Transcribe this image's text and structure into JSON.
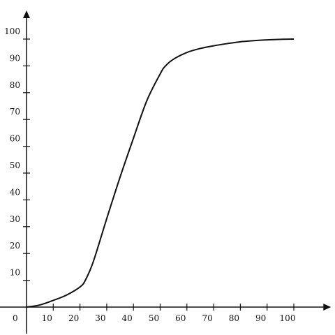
{
  "chart_data": {
    "type": "line",
    "title": "",
    "xlabel": "",
    "ylabel": "",
    "xlim": [
      0,
      110
    ],
    "ylim": [
      0,
      110
    ],
    "grid": false,
    "origin_label": "0",
    "x_ticks": [
      10,
      20,
      30,
      40,
      50,
      60,
      70,
      80,
      90,
      100
    ],
    "y_ticks": [
      10,
      20,
      30,
      40,
      50,
      60,
      70,
      80,
      90,
      100
    ],
    "series": [
      {
        "x": [
          0,
          5,
          10,
          15,
          20,
          22,
          25,
          30,
          35,
          40,
          45,
          50,
          52,
          55,
          60,
          65,
          70,
          75,
          80,
          85,
          90,
          95,
          100
        ],
        "y": [
          0,
          0.8,
          2.5,
          4.5,
          7.5,
          10,
          17,
          33,
          48.5,
          63,
          77,
          87,
          90,
          92.5,
          95,
          96.5,
          97.5,
          98.3,
          99,
          99.4,
          99.7,
          99.9,
          100
        ]
      }
    ],
    "color": "#111111"
  }
}
